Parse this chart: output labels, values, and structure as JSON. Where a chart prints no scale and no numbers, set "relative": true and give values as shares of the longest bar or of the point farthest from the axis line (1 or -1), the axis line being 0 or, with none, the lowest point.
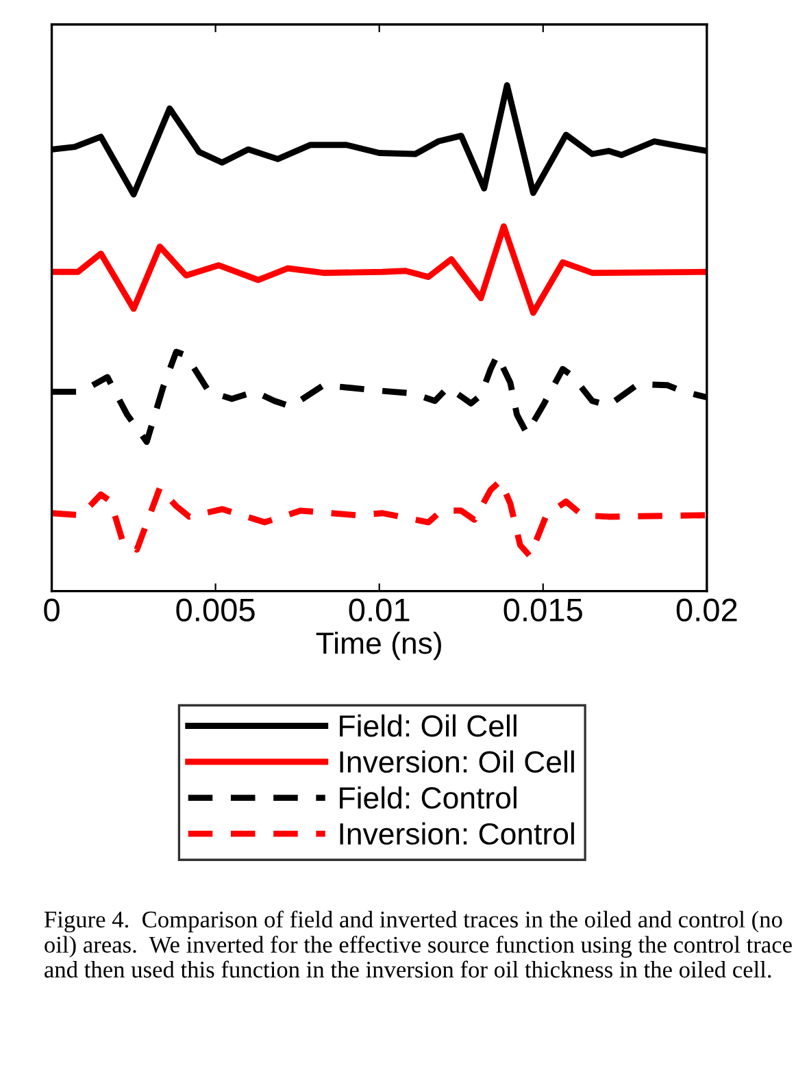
{
  "chart_data": {
    "type": "line",
    "xlabel": "Time (ns)",
    "relative": true,
    "legend": "bottom",
    "grid": false,
    "marker": "none",
    "xlim": [
      0,
      0.02
    ],
    "xticks": [
      0,
      0.005,
      0.01,
      0.015,
      0.02
    ],
    "annotations": [
      "Figure 4.  Comparison of field and inverted traces in the oiled and control (no oil) areas.  We inverted for the effective source function using the control trace and then used this function in the inversion for oil thickness in the oiled cell."
    ],
    "series": [
      {
        "name": "Field: Oil Cell",
        "color": "#000000",
        "line_style": "solid",
        "x": [
          0,
          0.0007,
          0.0015,
          0.0025,
          0.0036,
          0.0045,
          0.0052,
          0.006,
          0.0069,
          0.0079,
          0.009,
          0.01,
          0.0111,
          0.0118,
          0.0125,
          0.0132,
          0.0139,
          0.0147,
          0.0157,
          0.0165,
          0.017,
          0.0174,
          0.0184,
          0.0193,
          0.02
        ],
        "values": [
          0.873,
          0.878,
          0.898,
          0.784,
          0.954,
          0.868,
          0.847,
          0.873,
          0.854,
          0.882,
          0.882,
          0.866,
          0.864,
          0.889,
          0.9,
          0.796,
          1.0,
          0.787,
          0.902,
          0.864,
          0.87,
          0.862,
          0.889,
          0.878,
          0.87
        ]
      },
      {
        "name": "Inversion: Oil Cell",
        "color": "#ff0000",
        "line_style": "solid",
        "x": [
          0,
          0.0008,
          0.0015,
          0.0025,
          0.0033,
          0.0041,
          0.0051,
          0.0063,
          0.0072,
          0.0083,
          0.0101,
          0.0108,
          0.0115,
          0.0122,
          0.0131,
          0.0138,
          0.0147,
          0.0156,
          0.0165,
          0.02
        ],
        "values": [
          0.631,
          0.631,
          0.667,
          0.558,
          0.681,
          0.624,
          0.644,
          0.615,
          0.638,
          0.629,
          0.631,
          0.633,
          0.621,
          0.656,
          0.579,
          0.721,
          0.55,
          0.65,
          0.629,
          0.631
        ]
      },
      {
        "name": "Field: Control",
        "color": "#000000",
        "line_style": "dashed",
        "x": [
          0,
          0.0009,
          0.0017,
          0.0023,
          0.0029,
          0.0034,
          0.0038,
          0.0041,
          0.0048,
          0.0055,
          0.0062,
          0.0068,
          0.0073,
          0.0083,
          0.0097,
          0.0104,
          0.011,
          0.0117,
          0.0121,
          0.0128,
          0.0131,
          0.0134,
          0.0136,
          0.014,
          0.0142,
          0.0145,
          0.015,
          0.0156,
          0.0159,
          0.0165,
          0.017,
          0.0179,
          0.0188,
          0.0193,
          0.02
        ],
        "values": [
          0.394,
          0.394,
          0.423,
          0.349,
          0.295,
          0.403,
          0.473,
          0.466,
          0.394,
          0.38,
          0.394,
          0.376,
          0.365,
          0.407,
          0.398,
          0.394,
          0.391,
          0.376,
          0.403,
          0.371,
          0.387,
          0.439,
          0.466,
          0.412,
          0.349,
          0.312,
          0.367,
          0.439,
          0.425,
          0.376,
          0.367,
          0.409,
          0.407,
          0.394,
          0.383
        ]
      },
      {
        "name": "Inversion: Control",
        "color": "#ff0000",
        "line_style": "dashed",
        "x": [
          0,
          0.0009,
          0.0015,
          0.0018,
          0.0022,
          0.0026,
          0.0033,
          0.0038,
          0.0042,
          0.0052,
          0.0065,
          0.0076,
          0.0093,
          0.0101,
          0.0115,
          0.0119,
          0.0125,
          0.0129,
          0.0134,
          0.0137,
          0.014,
          0.0143,
          0.0146,
          0.0151,
          0.0157,
          0.0162,
          0.017,
          0.02
        ],
        "values": [
          0.154,
          0.15,
          0.191,
          0.177,
          0.091,
          0.082,
          0.204,
          0.168,
          0.147,
          0.162,
          0.136,
          0.159,
          0.15,
          0.154,
          0.136,
          0.159,
          0.159,
          0.141,
          0.2,
          0.218,
          0.173,
          0.091,
          0.069,
          0.15,
          0.177,
          0.15,
          0.147,
          0.15
        ]
      }
    ]
  }
}
